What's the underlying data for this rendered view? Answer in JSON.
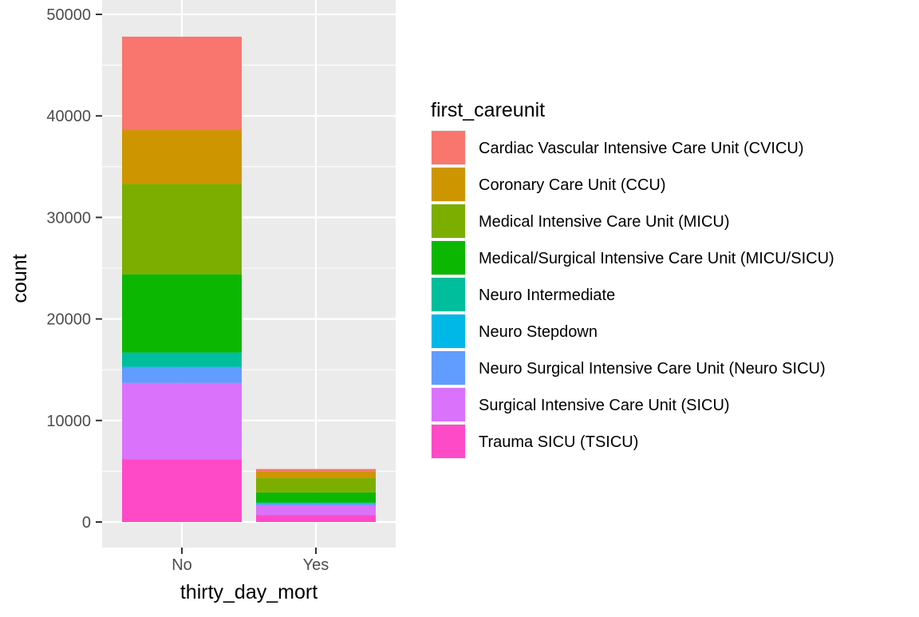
{
  "chart_data": {
    "type": "bar",
    "stacked": true,
    "xlabel": "thirty_day_mort",
    "ylabel": "count",
    "categories": [
      "No",
      "Yes"
    ],
    "ylim": [
      0,
      50000
    ],
    "yticks": [
      0,
      10000,
      20000,
      30000,
      40000,
      50000
    ],
    "ytick_labels": [
      "0",
      "10000",
      "20000",
      "30000",
      "40000",
      "50000"
    ],
    "grid": true,
    "legend": {
      "title": "first_careunit",
      "position": "right"
    },
    "series": [
      {
        "name": "Cardiac Vascular Intensive Care Unit (CVICU)",
        "color": "#F8766D",
        "values": [
          9200,
          200
        ]
      },
      {
        "name": "Coronary Care Unit (CCU)",
        "color": "#CD9600",
        "values": [
          5300,
          700
        ]
      },
      {
        "name": "Medical Intensive Care Unit (MICU)",
        "color": "#7CAE00",
        "values": [
          8900,
          1400
        ]
      },
      {
        "name": "Medical/Surgical Intensive Care Unit (MICU/SICU)",
        "color": "#0CB702",
        "values": [
          7700,
          1000
        ]
      },
      {
        "name": "Neuro Intermediate",
        "color": "#00BE9C",
        "values": [
          1400,
          100
        ]
      },
      {
        "name": "Neuro Stepdown",
        "color": "#00B8E7",
        "values": [
          100,
          20
        ]
      },
      {
        "name": "Neuro Surgical Intensive Care Unit (Neuro SICU)",
        "color": "#619CFF",
        "values": [
          1500,
          200
        ]
      },
      {
        "name": "Surgical Intensive Care Unit (SICU)",
        "color": "#DB72FB",
        "values": [
          7500,
          900
        ]
      },
      {
        "name": "Trauma SICU (TSICU)",
        "color": "#FF4AC8",
        "values": [
          6200,
          700
        ]
      }
    ]
  }
}
